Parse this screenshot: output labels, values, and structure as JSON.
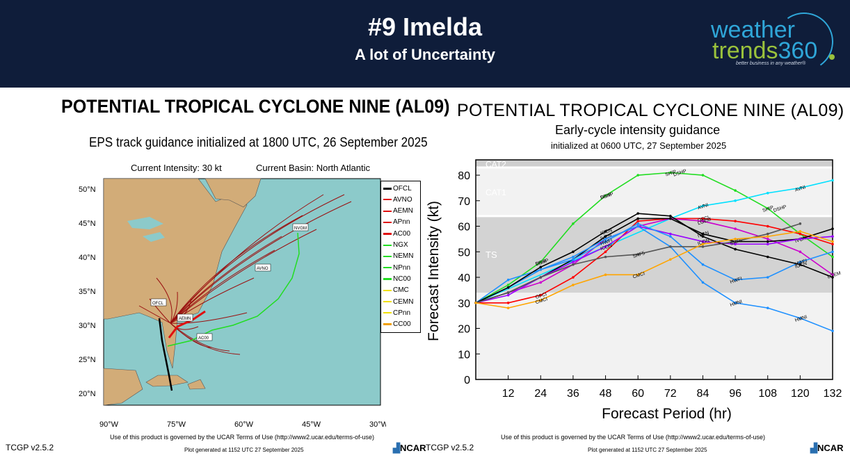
{
  "header": {
    "title": "#9 Imelda",
    "subtitle": "A lot of Uncertainty",
    "logo_line1": "weather",
    "logo_line2a": "trends",
    "logo_line2b": "360",
    "logo_tagline": "better business in any weather®",
    "bg_color": "#0f1d3a"
  },
  "left_panel": {
    "title": "POTENTIAL TROPICAL CYCLONE NINE (AL09)",
    "subtitle": "EPS track guidance initialized at 1800 UTC, 26 September 2025",
    "current_intensity": "Current Intensity: 30 kt",
    "current_basin": "Current Basin: North Atlantic",
    "lat_labels": [
      "50°N",
      "45°N",
      "40°N",
      "35°N",
      "30°N",
      "25°N",
      "20°N"
    ],
    "lon_labels": [
      "90°W",
      "75°W",
      "60°W",
      "45°W",
      "30°W"
    ],
    "legend": [
      {
        "label": "OFCL",
        "color": "#000000"
      },
      {
        "label": "AVNO",
        "color": "#e01010"
      },
      {
        "label": "AEMN",
        "color": "#e01010"
      },
      {
        "label": "APnn",
        "color": "#e01010"
      },
      {
        "label": "AC00",
        "color": "#e01010"
      },
      {
        "label": "NGX",
        "color": "#22dd22"
      },
      {
        "label": "NEMN",
        "color": "#22dd22"
      },
      {
        "label": "NPnn",
        "color": "#22dd22"
      },
      {
        "label": "NC00",
        "color": "#22dd22"
      },
      {
        "label": "CMC",
        "color": "#f0e000"
      },
      {
        "label": "CEMN",
        "color": "#f0e000"
      },
      {
        "label": "CPnn",
        "color": "#f0e000"
      },
      {
        "label": "CC00",
        "color": "#f0a000"
      }
    ],
    "map_labels": [
      "OFCL",
      "AEMN",
      "AC00",
      "AVNO",
      "NVGM"
    ],
    "footer_terms": "Use of this product is governed by the UCAR Terms of Use (http://www2.ucar.edu/terms-of-use)",
    "footer_plot": "Plot generated at 1152 UTC  27 September 2025",
    "version": "TCGP v2.5.2",
    "org": "NCAR"
  },
  "right_panel": {
    "title": "POTENTIAL TROPICAL CYCLONE NINE (AL09)",
    "subtitle1": "Early-cycle intensity guidance",
    "subtitle2": "initialized at 0600 UTC, 27 September 2025",
    "footer_terms": "Use of this product is governed by the UCAR Terms of Use (http://www2.ucar.edu/terms-of-use)",
    "footer_plot": "Plot generated at 1152 UTC  27 September 2025",
    "version": "TCGP v2.5.2",
    "org": "NCAR"
  },
  "chart_data": {
    "type": "line",
    "title": "POTENTIAL TROPICAL CYCLONE NINE (AL09)",
    "xlabel": "Forecast Period (hr)",
    "ylabel": "Forecast Intensity (kt)",
    "xlim": [
      0,
      132
    ],
    "ylim": [
      0,
      86
    ],
    "xticks": [
      12,
      24,
      36,
      48,
      60,
      72,
      84,
      96,
      108,
      120,
      132
    ],
    "yticks": [
      0,
      10,
      20,
      30,
      40,
      50,
      60,
      70,
      80
    ],
    "bands": [
      {
        "label": "TS",
        "from": 34,
        "to": 64
      },
      {
        "label": "CAT1",
        "from": 64,
        "to": 83
      },
      {
        "label": "CAT2",
        "from": 83,
        "to": 86
      }
    ],
    "x": [
      0,
      12,
      24,
      36,
      48,
      60,
      72,
      84,
      96,
      108,
      120,
      132
    ],
    "series": [
      {
        "name": "SHIP",
        "color": "#22dd22",
        "values": [
          30,
          37,
          46,
          61,
          72,
          80,
          81,
          80,
          74,
          67,
          57,
          48
        ],
        "label_points": [
          [
            24,
            "SHIP"
          ],
          [
            48,
            "SHIP"
          ],
          [
            72,
            "SHIP"
          ],
          [
            108,
            "SHIP"
          ]
        ]
      },
      {
        "name": "DSHP",
        "color": "#22dd22",
        "values": [
          null,
          null,
          null,
          null,
          null,
          null,
          null,
          null,
          null,
          null,
          null,
          null
        ],
        "label_points": [
          [
            24,
            "DSHP"
          ],
          [
            48,
            "DSHP"
          ],
          [
            75,
            "DSHP"
          ],
          [
            112,
            "DSHP"
          ]
        ]
      },
      {
        "name": "AVNI",
        "color": "#00e0ff",
        "values": [
          30,
          null,
          null,
          null,
          null,
          null,
          63,
          68,
          70,
          73,
          75,
          78
        ],
        "label_points": [
          [
            84,
            "AVNI"
          ],
          [
            120,
            "AVNI"
          ]
        ]
      },
      {
        "name": "OFCI",
        "color": "#ff0000",
        "values": [
          30,
          30,
          33,
          40,
          50,
          62,
          63,
          63,
          62,
          60,
          57,
          53
        ],
        "label_points": [
          [
            24,
            "OFCI"
          ],
          [
            84,
            "OFCI"
          ]
        ]
      },
      {
        "name": "LGEM",
        "color": "#cc00cc",
        "values": [
          30,
          34,
          38,
          45,
          55,
          60,
          63,
          62,
          59,
          55,
          50,
          41
        ],
        "label_points": [
          [
            84,
            "LGEM"
          ],
          [
            132,
            "LGEM"
          ]
        ]
      },
      {
        "name": "IVCN",
        "color": "#000000",
        "values": [
          30,
          34,
          40,
          47,
          56,
          63,
          63,
          57,
          54,
          54,
          55,
          59
        ],
        "label_points": [
          [
            48,
            "IVCN"
          ],
          [
            84,
            "IVCN"
          ],
          [
            120,
            "IVCN"
          ]
        ]
      },
      {
        "name": "ICON",
        "color": "#9900ff",
        "values": [
          30,
          33,
          40,
          46,
          52,
          60,
          57,
          54,
          53,
          53,
          55,
          56
        ],
        "label_points": [
          [
            48,
            "ICON"
          ],
          [
            84,
            "ICON"
          ]
        ]
      },
      {
        "name": "HWFI",
        "color": "#1e90ff",
        "values": [
          30,
          39,
          43,
          47,
          54,
          61,
          56,
          45,
          39,
          40,
          46,
          50
        ],
        "label_points": [
          [
            48,
            "HWFI"
          ],
          [
            96,
            "HWFI"
          ],
          [
            120,
            "HWFI"
          ]
        ]
      },
      {
        "name": "HMNI",
        "color": "#1e90ff",
        "values": [
          30,
          36,
          43,
          48,
          55,
          60,
          52,
          38,
          30,
          28,
          24,
          19
        ],
        "label_points": [
          [
            96,
            "HMNI"
          ],
          [
            120,
            "HMNI"
          ]
        ]
      },
      {
        "name": "IGCN",
        "color": "#000000",
        "values": [
          30,
          36,
          44,
          50,
          58,
          65,
          64,
          56,
          51,
          48,
          45,
          40
        ],
        "label_points": [
          [
            48,
            "IGCN"
          ],
          [
            120,
            "IGCN"
          ]
        ]
      },
      {
        "name": "SHF5",
        "color": "#555555",
        "values": [
          30,
          34,
          40,
          45,
          48,
          49,
          52,
          52,
          54,
          57,
          61,
          null
        ],
        "label_points": [
          [
            60,
            "SHF5"
          ],
          [
            96,
            "SHF5"
          ]
        ]
      },
      {
        "name": "CMCI",
        "color": "#ffa500",
        "values": [
          30,
          28,
          31,
          37,
          41,
          41,
          47,
          53,
          55,
          56,
          58,
          54
        ],
        "label_points": [
          [
            24,
            "CMCI"
          ],
          [
            60,
            "CMCI"
          ]
        ]
      }
    ]
  }
}
